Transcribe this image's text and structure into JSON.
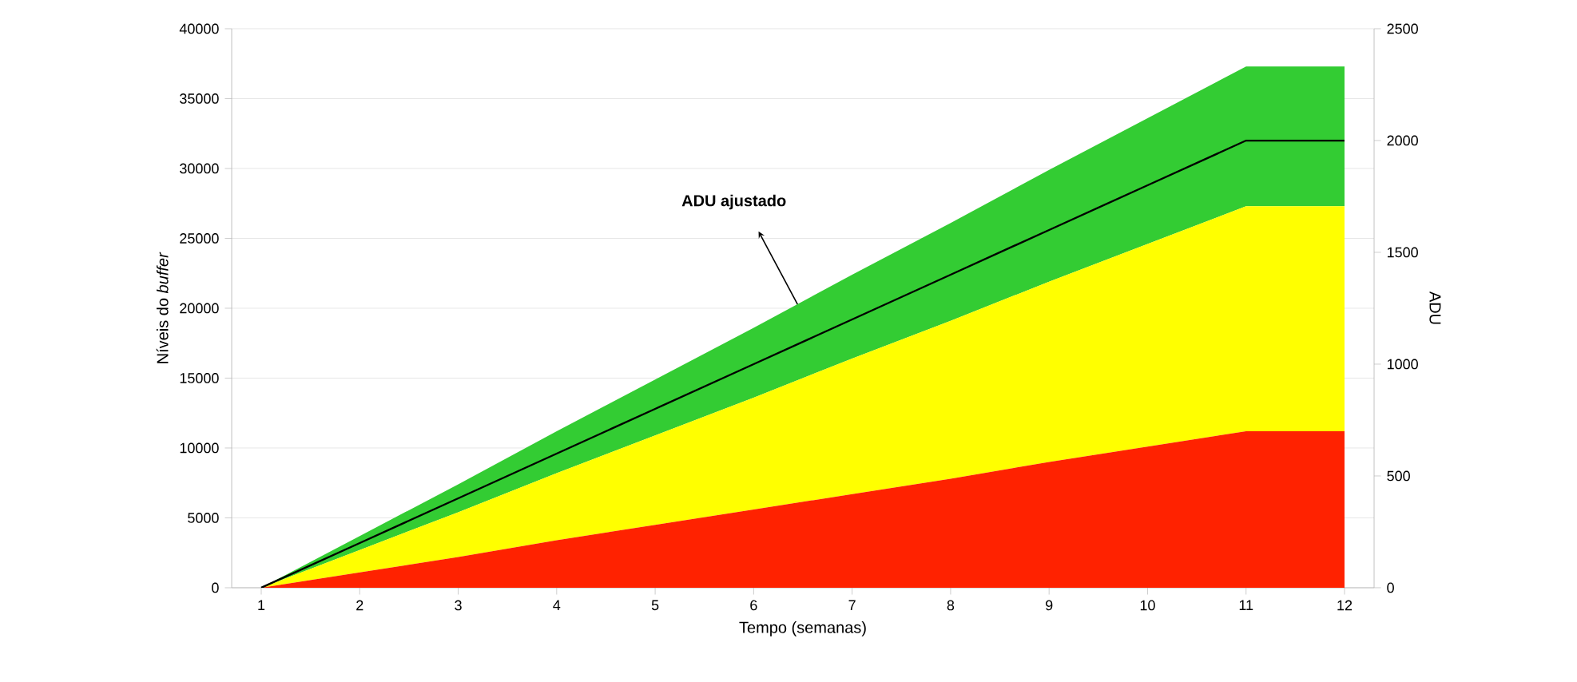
{
  "chart_data": {
    "type": "area",
    "xlabel": "Tempo (semanas)",
    "ylabel": "Níveis do *buffer*",
    "y2label": "ADU",
    "categories": [
      "1",
      "2",
      "3",
      "4",
      "5",
      "6",
      "7",
      "8",
      "9",
      "10",
      "11",
      "12"
    ],
    "stacked": true,
    "series": [
      {
        "color": "#ff2200",
        "values": [
          0,
          1100,
          2200,
          3400,
          4500,
          5600,
          6700,
          7800,
          9000,
          10100,
          11200,
          11200
        ]
      },
      {
        "color": "#ffff00",
        "values": [
          0,
          1600,
          3200,
          4800,
          6400,
          8000,
          9700,
          11300,
          12900,
          14500,
          16100,
          16100
        ]
      },
      {
        "color": "#33cc33",
        "values": [
          0,
          1000,
          2000,
          3000,
          4000,
          5000,
          6000,
          7000,
          8000,
          9000,
          10000,
          10000
        ]
      },
      {
        "type": "line",
        "axis": "y2",
        "color": "#000000",
        "values": [
          0,
          200,
          400,
          600,
          800,
          1000,
          1200,
          1400,
          1600,
          1800,
          2000,
          2000
        ]
      }
    ],
    "ylim": [
      0,
      40000
    ],
    "yticks": [
      0,
      5000,
      10000,
      15000,
      20000,
      25000,
      30000,
      35000,
      40000
    ],
    "y2lim": [
      0,
      2500
    ],
    "y2ticks": [
      0,
      500,
      1000,
      1500,
      2000,
      2500
    ],
    "grid": "y",
    "marker": "none",
    "line_style": "solid",
    "annotations": [
      "ADU ajustado"
    ]
  }
}
